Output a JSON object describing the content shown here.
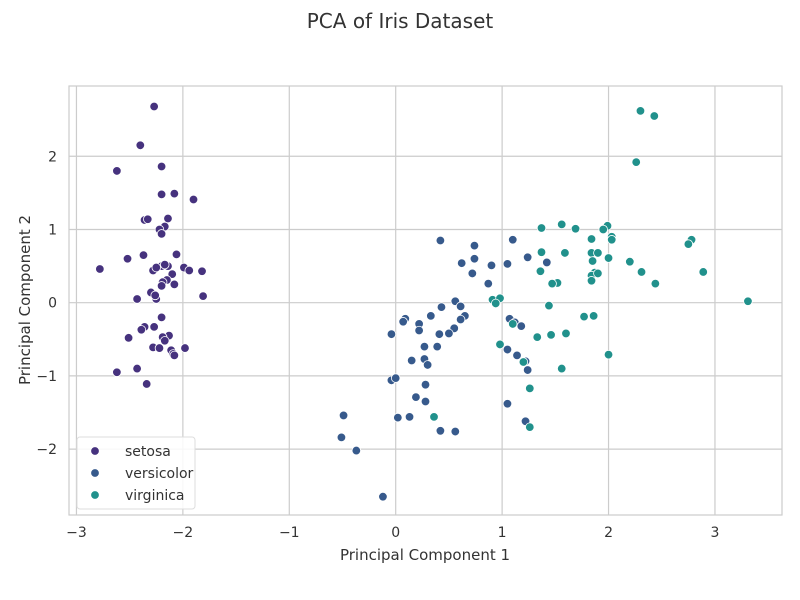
{
  "chart_data": {
    "type": "scatter",
    "title": "PCA of Iris Dataset",
    "xlabel": "Principal Component 1",
    "ylabel": "Principal Component 2",
    "xlim": [
      -3.07,
      3.63
    ],
    "ylim": [
      -2.9,
      2.96
    ],
    "xticks": [
      {
        "value": -3,
        "label": "−3"
      },
      {
        "value": -2,
        "label": "−2"
      },
      {
        "value": -1,
        "label": "−1"
      },
      {
        "value": 0,
        "label": "0"
      },
      {
        "value": 1,
        "label": "1"
      },
      {
        "value": 2,
        "label": "2"
      },
      {
        "value": 3,
        "label": "3"
      }
    ],
    "yticks": [
      {
        "value": -2,
        "label": "−2"
      },
      {
        "value": -1,
        "label": "−1"
      },
      {
        "value": 0,
        "label": "0"
      },
      {
        "value": 1,
        "label": "1"
      },
      {
        "value": 2,
        "label": "2"
      }
    ],
    "grid": true,
    "legend_position": "bottom-left",
    "series": [
      {
        "name": "setosa",
        "color": "#46327e",
        "points": [
          [
            -2.27,
            2.68
          ],
          [
            -2.4,
            2.15
          ],
          [
            -2.2,
            1.86
          ],
          [
            -2.62,
            1.8
          ],
          [
            -2.2,
            1.48
          ],
          [
            -2.08,
            1.49
          ],
          [
            -1.9,
            1.41
          ],
          [
            -2.36,
            1.13
          ],
          [
            -2.33,
            1.14
          ],
          [
            -2.14,
            1.15
          ],
          [
            -2.17,
            1.04
          ],
          [
            -2.22,
            1.0
          ],
          [
            -2.2,
            0.94
          ],
          [
            -2.37,
            0.65
          ],
          [
            -2.06,
            0.66
          ],
          [
            -2.52,
            0.6
          ],
          [
            -2.2,
            0.5
          ],
          [
            -2.14,
            0.5
          ],
          [
            -2.17,
            0.52
          ],
          [
            -2.28,
            0.44
          ],
          [
            -2.25,
            0.48
          ],
          [
            -1.99,
            0.48
          ],
          [
            -1.94,
            0.44
          ],
          [
            -1.82,
            0.43
          ],
          [
            -2.78,
            0.46
          ],
          [
            -2.1,
            0.39
          ],
          [
            -2.15,
            0.31
          ],
          [
            -2.19,
            0.28
          ],
          [
            -2.2,
            0.23
          ],
          [
            -2.3,
            0.14
          ],
          [
            -2.08,
            0.25
          ],
          [
            -2.43,
            0.05
          ],
          [
            -2.25,
            0.05
          ],
          [
            -2.26,
            0.1
          ],
          [
            -1.81,
            0.09
          ],
          [
            -2.2,
            -0.2
          ],
          [
            -2.36,
            -0.33
          ],
          [
            -2.39,
            -0.37
          ],
          [
            -2.27,
            -0.33
          ],
          [
            -2.13,
            -0.45
          ],
          [
            -2.19,
            -0.47
          ],
          [
            -2.51,
            -0.48
          ],
          [
            -2.17,
            -0.52
          ],
          [
            -2.11,
            -0.65
          ],
          [
            -2.28,
            -0.61
          ],
          [
            -2.22,
            -0.62
          ],
          [
            -1.98,
            -0.62
          ],
          [
            -2.09,
            -0.7
          ],
          [
            -2.08,
            -0.72
          ],
          [
            -2.43,
            -0.9
          ],
          [
            -2.62,
            -0.95
          ],
          [
            -2.34,
            -1.11
          ]
        ]
      },
      {
        "name": "versicolor",
        "color": "#375a8c",
        "points": [
          [
            0.42,
            0.85
          ],
          [
            1.1,
            0.86
          ],
          [
            0.74,
            0.78
          ],
          [
            0.74,
            0.6
          ],
          [
            1.24,
            0.62
          ],
          [
            0.72,
            0.4
          ],
          [
            0.87,
            0.26
          ],
          [
            1.05,
            0.53
          ],
          [
            0.9,
            0.51
          ],
          [
            0.62,
            0.54
          ],
          [
            1.42,
            0.55
          ],
          [
            0.56,
            0.02
          ],
          [
            0.61,
            -0.05
          ],
          [
            0.43,
            -0.06
          ],
          [
            0.33,
            -0.18
          ],
          [
            0.22,
            -0.29
          ],
          [
            0.22,
            -0.38
          ],
          [
            0.09,
            -0.22
          ],
          [
            0.07,
            -0.26
          ],
          [
            0.65,
            -0.18
          ],
          [
            0.61,
            -0.23
          ],
          [
            0.55,
            -0.35
          ],
          [
            1.07,
            -0.22
          ],
          [
            1.12,
            -0.27
          ],
          [
            1.18,
            -0.32
          ],
          [
            0.5,
            -0.42
          ],
          [
            0.41,
            -0.43
          ],
          [
            -0.04,
            -0.43
          ],
          [
            0.27,
            -0.6
          ],
          [
            0.39,
            -0.6
          ],
          [
            1.05,
            -0.64
          ],
          [
            1.14,
            -0.72
          ],
          [
            0.15,
            -0.79
          ],
          [
            0.27,
            -0.77
          ],
          [
            0.3,
            -0.85
          ],
          [
            1.22,
            -0.8
          ],
          [
            1.24,
            -0.92
          ],
          [
            -0.04,
            -1.06
          ],
          [
            0.0,
            -1.03
          ],
          [
            0.28,
            -1.12
          ],
          [
            0.19,
            -1.29
          ],
          [
            0.28,
            -1.35
          ],
          [
            1.05,
            -1.38
          ],
          [
            -0.49,
            -1.54
          ],
          [
            0.02,
            -1.57
          ],
          [
            0.13,
            -1.56
          ],
          [
            0.42,
            -1.75
          ],
          [
            0.56,
            -1.76
          ],
          [
            -0.51,
            -1.84
          ],
          [
            -0.37,
            -2.02
          ],
          [
            1.22,
            -1.62
          ],
          [
            -0.12,
            -2.65
          ]
        ]
      },
      {
        "name": "virginica",
        "color": "#21918c",
        "points": [
          [
            2.3,
            2.62
          ],
          [
            2.43,
            2.55
          ],
          [
            2.26,
            1.92
          ],
          [
            1.56,
            1.07
          ],
          [
            1.99,
            1.05
          ],
          [
            1.95,
            1.0
          ],
          [
            1.69,
            1.01
          ],
          [
            1.37,
            1.02
          ],
          [
            2.03,
            0.9
          ],
          [
            2.03,
            0.86
          ],
          [
            1.84,
            0.87
          ],
          [
            2.78,
            0.86
          ],
          [
            2.75,
            0.8
          ],
          [
            1.37,
            0.69
          ],
          [
            1.59,
            0.68
          ],
          [
            1.84,
            0.68
          ],
          [
            1.9,
            0.68
          ],
          [
            2.0,
            0.61
          ],
          [
            1.85,
            0.57
          ],
          [
            2.2,
            0.56
          ],
          [
            2.31,
            0.42
          ],
          [
            2.89,
            0.42
          ],
          [
            1.87,
            0.41
          ],
          [
            1.36,
            0.43
          ],
          [
            1.84,
            0.37
          ],
          [
            1.9,
            0.4
          ],
          [
            1.84,
            0.3
          ],
          [
            2.44,
            0.26
          ],
          [
            1.52,
            0.27
          ],
          [
            1.47,
            0.26
          ],
          [
            1.44,
            -0.04
          ],
          [
            0.91,
            0.04
          ],
          [
            0.98,
            0.06
          ],
          [
            0.94,
            -0.01
          ],
          [
            3.31,
            0.02
          ],
          [
            1.77,
            -0.19
          ],
          [
            1.86,
            -0.18
          ],
          [
            1.6,
            -0.42
          ],
          [
            1.46,
            -0.44
          ],
          [
            1.33,
            -0.47
          ],
          [
            1.1,
            -0.29
          ],
          [
            0.98,
            -0.57
          ],
          [
            1.2,
            -0.81
          ],
          [
            2.0,
            -0.71
          ],
          [
            1.56,
            -0.9
          ],
          [
            1.26,
            -1.17
          ],
          [
            0.36,
            -1.56
          ],
          [
            1.26,
            -1.7
          ]
        ]
      }
    ]
  }
}
